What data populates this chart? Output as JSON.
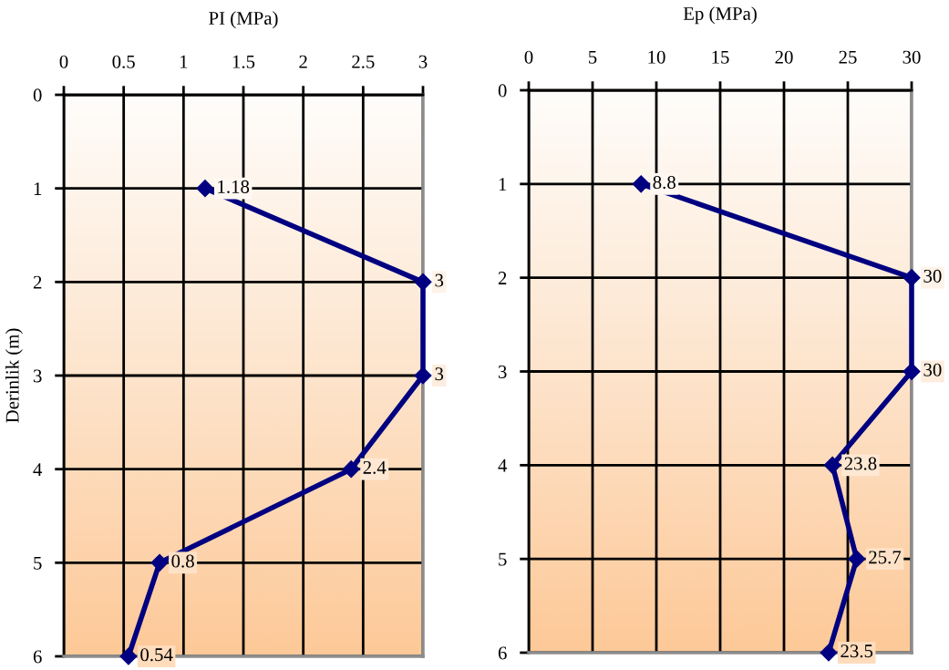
{
  "chart_data": [
    {
      "type": "line",
      "orientation": "horizontal",
      "xlabel": "PI (MPa)",
      "ylabel": "Derinlik (m)",
      "xlim": [
        0,
        3
      ],
      "xticks": [
        0,
        0.5,
        1,
        1.5,
        2,
        2.5,
        3
      ],
      "ylim": [
        6,
        0
      ],
      "yticks": [
        0,
        1,
        2,
        3,
        4,
        5,
        6
      ],
      "grid": true,
      "marker": "diamond",
      "line_style": "solid",
      "data_labels": true,
      "series": [
        {
          "color": "#000080",
          "x": [
            1,
            2,
            3,
            4,
            5,
            6
          ],
          "values": [
            1.18,
            3,
            3,
            2.4,
            0.8,
            0.54
          ]
        }
      ]
    },
    {
      "type": "line",
      "orientation": "horizontal",
      "xlabel": "Ep (MPa)",
      "xlim": [
        0,
        30
      ],
      "xticks": [
        0,
        5,
        10,
        15,
        20,
        25,
        30
      ],
      "ylim": [
        6,
        0
      ],
      "yticks": [
        0,
        1,
        2,
        3,
        4,
        5,
        6
      ],
      "grid": true,
      "marker": "diamond",
      "line_style": "solid",
      "data_labels": true,
      "series": [
        {
          "color": "#000080",
          "x": [
            1,
            2,
            3,
            4,
            5,
            6
          ],
          "values": [
            8.8,
            30,
            30,
            23.8,
            25.7,
            23.5
          ]
        }
      ]
    }
  ]
}
